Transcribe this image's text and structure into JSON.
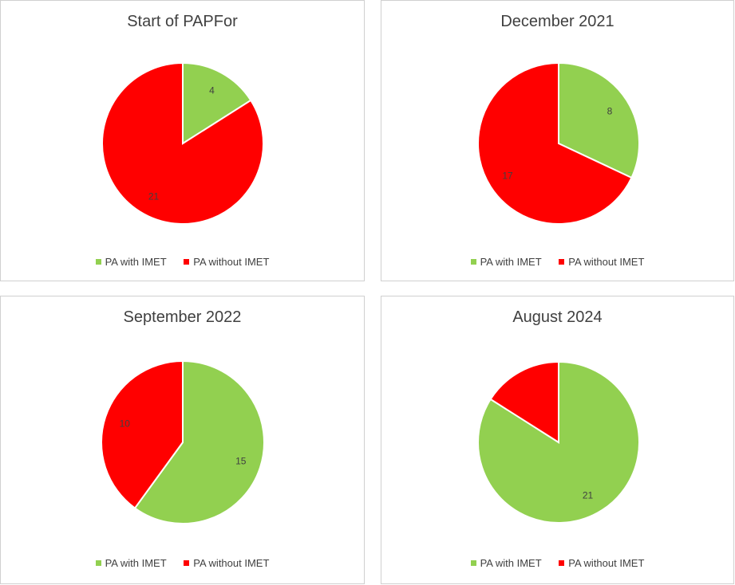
{
  "colors": {
    "with": "#92d050",
    "without": "#ff0000"
  },
  "legend": {
    "with_label": "PA with IMET",
    "without_label": "PA without IMET"
  },
  "chart_data": [
    {
      "type": "pie",
      "title": "Start of PAPFor",
      "categories": [
        "PA with IMET",
        "PA without IMET"
      ],
      "values": [
        4,
        21
      ],
      "data_labels": [
        "4",
        "21"
      ]
    },
    {
      "type": "pie",
      "title": "December 2021",
      "categories": [
        "PA with IMET",
        "PA without IMET"
      ],
      "values": [
        8,
        17
      ],
      "data_labels": [
        "8",
        "17"
      ]
    },
    {
      "type": "pie",
      "title": "September 2022",
      "categories": [
        "PA with IMET",
        "PA without IMET"
      ],
      "values": [
        15,
        10
      ],
      "data_labels": [
        "15",
        "10"
      ]
    },
    {
      "type": "pie",
      "title": "August 2024",
      "categories": [
        "PA with IMET",
        "PA without IMET"
      ],
      "values": [
        21,
        4
      ],
      "data_labels": [
        "21",
        ""
      ]
    }
  ]
}
